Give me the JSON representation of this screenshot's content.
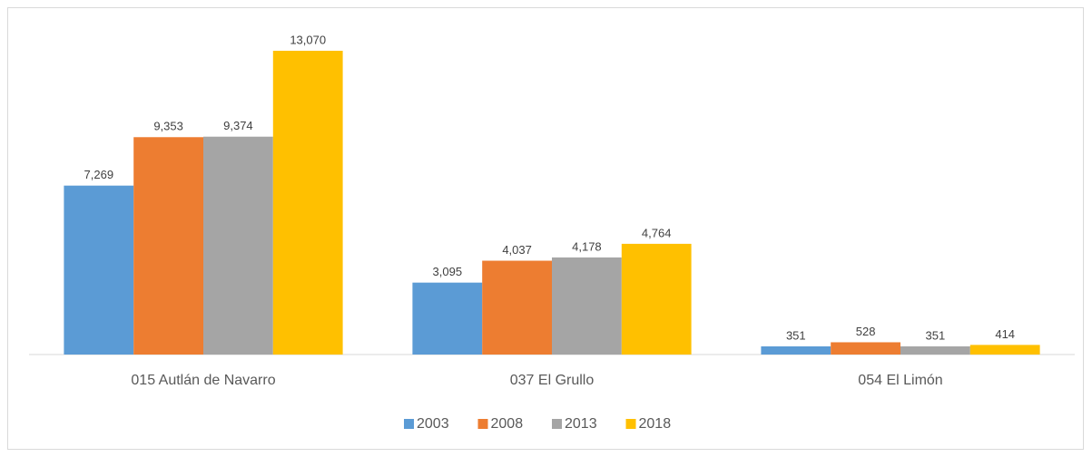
{
  "chart_data": {
    "type": "bar",
    "categories": [
      "015 Autlán de Navarro",
      "037 El Grullo",
      "054 El Limón"
    ],
    "series": [
      {
        "name": "2003",
        "color": "#5b9bd5",
        "values": [
          7269,
          3095,
          351
        ],
        "value_labels": [
          "7,269",
          "3,095",
          "351"
        ]
      },
      {
        "name": "2008",
        "color": "#ed7d31",
        "values": [
          9353,
          4037,
          528
        ],
        "value_labels": [
          "9,353",
          "4,037",
          "528"
        ]
      },
      {
        "name": "2013",
        "color": "#a5a5a5",
        "values": [
          9374,
          4178,
          351
        ],
        "value_labels": [
          "9,374",
          "4,178",
          "351"
        ]
      },
      {
        "name": "2018",
        "color": "#ffc000",
        "values": [
          13070,
          4764,
          414
        ],
        "value_labels": [
          "13,070",
          "4,764",
          "414"
        ]
      }
    ],
    "legend": "bottom"
  }
}
